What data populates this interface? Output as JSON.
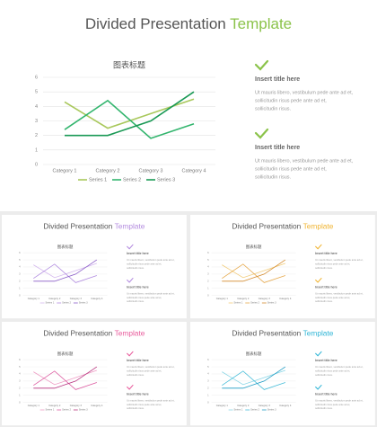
{
  "slides": [
    {
      "title": "Divided Presentation",
      "accent": "Template",
      "accent_color": "#8bc34a",
      "items": [
        {
          "heading": "Insert title here",
          "lines": [
            "Ut mauris libero, vestibulum pede ante ad et,",
            "sollicitudin risus pede ante ad et,",
            "sollicitudin risus."
          ]
        },
        {
          "heading": "Insert title here",
          "lines": [
            "Ut mauris libero, vestibulum pede ante ad et,",
            "sollicitudin risus pede ante ad et,",
            "sollicitudin risus."
          ]
        }
      ]
    },
    {
      "title": "Divided Presentation",
      "accent": "Template",
      "accent_color": "#b38bdf",
      "items": [
        {
          "heading": "Insert title here",
          "lines": [
            "Ut mauris libero, vestibulum pede ante ad et,",
            "sollicitudin risus pede ante ad et,",
            "sollicitudin risus."
          ]
        },
        {
          "heading": "Insert title here",
          "lines": [
            "Ut mauris libero, vestibulum pede ante ad et,",
            "sollicitudin risus pede ante ad et,",
            "sollicitudin risus."
          ]
        }
      ]
    },
    {
      "title": "Divided Presentation",
      "accent": "Template",
      "accent_color": "#f0b432",
      "items": [
        {
          "heading": "Insert title here",
          "lines": [
            "Ut mauris libero, vestibulum pede ante ad et,",
            "sollicitudin risus pede ante ad et,",
            "sollicitudin risus."
          ]
        },
        {
          "heading": "Insert title here",
          "lines": [
            "Ut mauris libero, vestibulum pede ante ad et,",
            "sollicitudin risus pede ante ad et,",
            "sollicitudin risus."
          ]
        }
      ]
    },
    {
      "title": "Divided Presentation",
      "accent": "Template",
      "accent_color": "#e85a9b",
      "items": [
        {
          "heading": "Insert title here",
          "lines": [
            "Ut mauris libero, vestibulum pede ante ad et,",
            "sollicitudin risus pede ante ad et,",
            "sollicitudin risus."
          ]
        },
        {
          "heading": "Insert title here",
          "lines": [
            "Ut mauris libero, vestibulum pede ante ad et,",
            "sollicitudin risus pede ante ad et,",
            "sollicitudin risus."
          ]
        }
      ]
    },
    {
      "title": "Divided Presentation",
      "accent": "Template",
      "accent_color": "#2fb5d6",
      "items": [
        {
          "heading": "Insert title here",
          "lines": [
            "Ut mauris libero, vestibulum pede ante ad et,",
            "sollicitudin risus pede ante ad et,",
            "sollicitudin risus."
          ]
        },
        {
          "heading": "Insert title here",
          "lines": [
            "Ut mauris libero, vestibulum pede ante ad et,",
            "sollicitudin risus pede ante ad et,",
            "sollicitudin risus."
          ]
        }
      ]
    }
  ],
  "chart_data": [
    {
      "type": "line",
      "title": "图表标题",
      "categories": [
        "Category 1",
        "Category 2",
        "Category 3",
        "Category 4"
      ],
      "ylim": [
        0,
        6
      ],
      "yticks": [
        0,
        1,
        2,
        3,
        4,
        5,
        6
      ],
      "grid": true,
      "legend": "bottom",
      "series": [
        {
          "name": "Series 1",
          "color": "#a9c85c",
          "values": [
            4.3,
            2.5,
            3.5,
            4.5
          ]
        },
        {
          "name": "Series 2",
          "color": "#33b56e",
          "values": [
            2.4,
            4.4,
            1.8,
            2.8
          ]
        },
        {
          "name": "Series 3",
          "color": "#1a9955",
          "values": [
            2,
            2,
            3,
            5
          ]
        }
      ]
    },
    {
      "type": "line",
      "title": "图表标题",
      "categories": [
        "Category 1",
        "Category 2",
        "Category 3",
        "Category 4"
      ],
      "ylim": [
        0,
        6
      ],
      "yticks": [
        0,
        1,
        2,
        3,
        4,
        5,
        6
      ],
      "grid": true,
      "legend": "bottom",
      "series": [
        {
          "name": "Series 1",
          "color": "#d4b8ee",
          "values": [
            4.3,
            2.5,
            3.5,
            4.5
          ]
        },
        {
          "name": "Series 2",
          "color": "#b08ae0",
          "values": [
            2.4,
            4.4,
            1.8,
            2.8
          ]
        },
        {
          "name": "Series 3",
          "color": "#8a5cc8",
          "values": [
            2,
            2,
            3,
            5
          ]
        }
      ]
    },
    {
      "type": "line",
      "title": "图表标题",
      "categories": [
        "Category 1",
        "Category 2",
        "Category 3",
        "Category 4"
      ],
      "ylim": [
        0,
        6
      ],
      "yticks": [
        0,
        1,
        2,
        3,
        4,
        5,
        6
      ],
      "grid": true,
      "legend": "bottom",
      "series": [
        {
          "name": "Series 1",
          "color": "#f2cc7a",
          "values": [
            4.3,
            2.5,
            3.5,
            4.5
          ]
        },
        {
          "name": "Series 2",
          "color": "#e6a84a",
          "values": [
            2.4,
            4.4,
            1.8,
            2.8
          ]
        },
        {
          "name": "Series 3",
          "color": "#d48a2c",
          "values": [
            2,
            2,
            3,
            5
          ]
        }
      ]
    },
    {
      "type": "line",
      "title": "图表标题",
      "categories": [
        "Category 1",
        "Category 2",
        "Category 3",
        "Category 4"
      ],
      "ylim": [
        0,
        6
      ],
      "yticks": [
        0,
        1,
        2,
        3,
        4,
        5,
        6
      ],
      "grid": true,
      "legend": "bottom",
      "series": [
        {
          "name": "Series 1",
          "color": "#ee9cc4",
          "values": [
            4.3,
            2.5,
            3.5,
            4.5
          ]
        },
        {
          "name": "Series 2",
          "color": "#dc5aa0",
          "values": [
            2.4,
            4.4,
            1.8,
            2.8
          ]
        },
        {
          "name": "Series 3",
          "color": "#b8327e",
          "values": [
            2,
            2,
            3,
            5
          ]
        }
      ]
    },
    {
      "type": "line",
      "title": "图表标题",
      "categories": [
        "Category 1",
        "Category 2",
        "Category 3",
        "Category 4"
      ],
      "ylim": [
        0,
        6
      ],
      "yticks": [
        0,
        1,
        2,
        3,
        4,
        5,
        6
      ],
      "grid": true,
      "legend": "bottom",
      "series": [
        {
          "name": "Series 1",
          "color": "#8ad6e6",
          "values": [
            4.3,
            2.5,
            3.5,
            4.5
          ]
        },
        {
          "name": "Series 2",
          "color": "#44bcd8",
          "values": [
            2.4,
            4.4,
            1.8,
            2.8
          ]
        },
        {
          "name": "Series 3",
          "color": "#1f9cc4",
          "values": [
            2,
            2,
            3,
            5
          ]
        }
      ]
    }
  ]
}
